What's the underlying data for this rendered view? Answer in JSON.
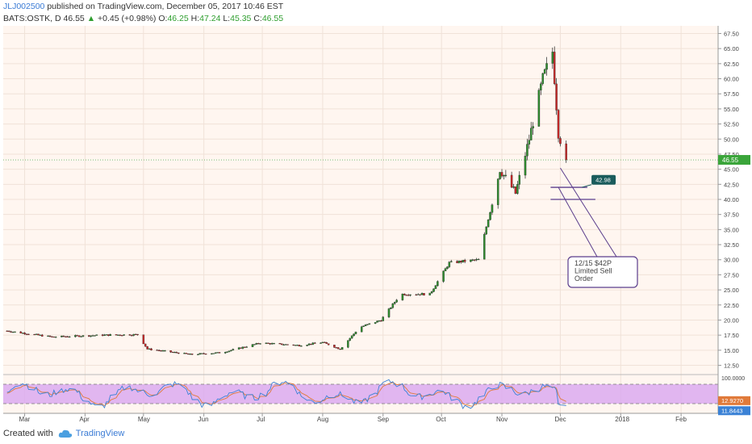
{
  "header": {
    "user": "JLJ002500",
    "published_text": "published on TradingView.com, December 05, 2017 10:46 EST"
  },
  "symbol": {
    "name": "BATS:OSTK, D",
    "last": "46.55",
    "arrow": "▲",
    "change": "+0.45 (+0.98%)",
    "o_label": "O:",
    "o_val": "46.25",
    "h_label": "H:",
    "h_val": "47.24",
    "l_label": "L:",
    "l_val": "45.35",
    "c_label": "C:",
    "c_val": "46.55"
  },
  "colors": {
    "up": "#2e8b2e",
    "down": "#c62828",
    "chart_bg": "#fff6f0",
    "rsi_band": "#d9a6f0",
    "stoch_k": "#3b82d6",
    "stoch_d": "#e07a3a",
    "annotation_border": "#5b3d8c",
    "price_tag": "#1a5c5c"
  },
  "footer": {
    "created_with": "Created with",
    "brand": "TradingView"
  },
  "chart_data": [
    {
      "type": "candlestick",
      "price_axis": {
        "ticks": [
          "67.50",
          "65.00",
          "62.50",
          "60.00",
          "57.50",
          "55.00",
          "52.50",
          "50.00",
          "47.50",
          "45.00",
          "42.50",
          "40.00",
          "37.50",
          "35.00",
          "32.50",
          "30.00",
          "27.50",
          "25.00",
          "22.50",
          "20.00",
          "17.50",
          "15.00",
          "12.50"
        ],
        "ylim": [
          11.5,
          68.5
        ]
      },
      "time_axis": {
        "labels": [
          "Mar",
          "Apr",
          "May",
          "Jun",
          "Jul",
          "Aug",
          "Sep",
          "Oct",
          "Nov",
          "Dec",
          "2018",
          "Feb"
        ]
      },
      "current_price_label": "46.55",
      "current_price": 46.55,
      "series_approx": [
        {
          "date": "2017-02-20",
          "close": 18.2
        },
        {
          "date": "2017-03-15",
          "close": 17.2
        },
        {
          "date": "2017-04-10",
          "close": 17.5
        },
        {
          "date": "2017-04-28",
          "close": 17.6
        },
        {
          "date": "2017-05-03",
          "close": 15.2
        },
        {
          "date": "2017-05-25",
          "close": 14.3
        },
        {
          "date": "2017-06-10",
          "close": 14.6
        },
        {
          "date": "2017-06-30",
          "close": 16.2
        },
        {
          "date": "2017-07-20",
          "close": 15.8
        },
        {
          "date": "2017-08-01",
          "close": 16.3
        },
        {
          "date": "2017-08-10",
          "close": 15.2
        },
        {
          "date": "2017-08-20",
          "close": 18.8
        },
        {
          "date": "2017-08-31",
          "close": 20.0
        },
        {
          "date": "2017-09-10",
          "close": 24.3
        },
        {
          "date": "2017-09-25",
          "close": 24.3
        },
        {
          "date": "2017-10-05",
          "close": 29.5
        },
        {
          "date": "2017-10-20",
          "close": 30.0
        },
        {
          "date": "2017-10-31",
          "close": 45.0
        },
        {
          "date": "2017-11-08",
          "close": 41.0
        },
        {
          "date": "2017-11-15",
          "close": 50.0
        },
        {
          "date": "2017-11-22",
          "close": 60.0
        },
        {
          "date": "2017-11-27",
          "close": 64.5
        },
        {
          "date": "2017-11-30",
          "close": 51.0
        },
        {
          "date": "2017-12-04",
          "close": 46.55
        }
      ],
      "horizontal_lines": [
        {
          "value": 42.0
        },
        {
          "value": 40.0
        }
      ],
      "price_tag": {
        "label": "42.98",
        "value": 42.98
      },
      "annotation": {
        "text_lines": [
          "12/15 $42P",
          "Limited Sell",
          "Order"
        ]
      }
    },
    {
      "type": "line",
      "name": "stochastic",
      "axis_ticks": [
        "100.0000"
      ],
      "value_labels": [
        {
          "label": "12.9270",
          "value": 12.927,
          "color": "#e07a3a"
        },
        {
          "label": "11.8443",
          "value": 11.8443,
          "color": "#3b82d6"
        }
      ],
      "bands": [
        80,
        20
      ]
    }
  ]
}
